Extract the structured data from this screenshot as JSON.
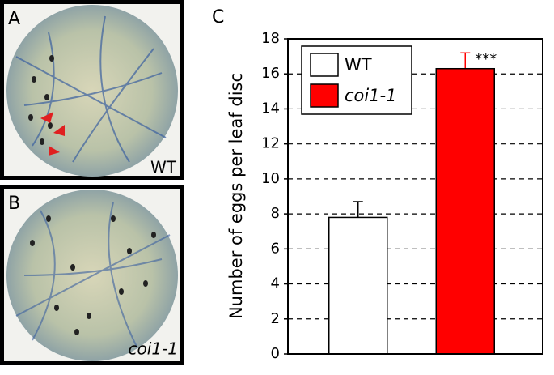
{
  "panels": {
    "labels": [
      "A",
      "B",
      "C"
    ],
    "image_labels": [
      "WT",
      "coi1-1"
    ]
  },
  "chart_data": {
    "type": "bar",
    "y_label": "Number of eggs per leaf disc",
    "series": [
      {
        "name": "WT",
        "color": "#ffffff",
        "error_color": "#000000",
        "values": [
          7.8
        ],
        "errors": [
          0.9
        ]
      },
      {
        "name": "coi1-1",
        "color": "#ff0000",
        "error_color": "#ff0000",
        "values": [
          16.3
        ],
        "errors": [
          0.9
        ]
      }
    ],
    "annotations": [
      "***"
    ],
    "ylim": [
      0,
      18
    ],
    "yticks": [
      0,
      2,
      4,
      6,
      8,
      10,
      12,
      14,
      16,
      18
    ],
    "grid": true,
    "legend": "top-left"
  }
}
